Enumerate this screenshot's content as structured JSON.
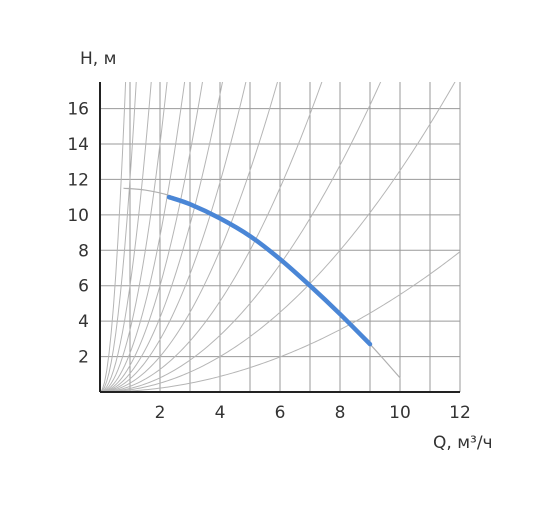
{
  "chart_data": {
    "type": "line",
    "title": "",
    "xlabel": "Q, м³/ч",
    "ylabel": "H, м",
    "xlim": [
      0,
      12
    ],
    "ylim": [
      0,
      17.5
    ],
    "x_ticks": [
      2,
      4,
      6,
      8,
      10,
      12
    ],
    "x_tick_labels": [
      "2",
      "4",
      "6",
      "8",
      "10",
      "12"
    ],
    "y_ticks": [
      2,
      4,
      6,
      8,
      10,
      12,
      14,
      16
    ],
    "y_tick_labels": [
      "2",
      "4",
      "6",
      "8",
      "10",
      "12",
      "14",
      "16"
    ],
    "grid": true,
    "series": [
      {
        "role": "pump-curve-full",
        "color": "#b0b0b0",
        "x": [
          0.8,
          1.5,
          2.3,
          3.0,
          4.0,
          5.0,
          6.0,
          7.0,
          8.0,
          9.0,
          10.0
        ],
        "y": [
          11.5,
          11.4,
          11.1,
          10.6,
          9.8,
          8.8,
          7.5,
          6.0,
          4.4,
          2.7,
          0.8
        ]
      },
      {
        "role": "operating-range",
        "color": "#4a86d6",
        "x": [
          2.3,
          3.0,
          4.0,
          5.0,
          6.0,
          7.0,
          8.0,
          9.0
        ],
        "y": [
          11.0,
          10.6,
          9.8,
          8.8,
          7.5,
          6.0,
          4.4,
          2.7
        ]
      }
    ],
    "system_curves": {
      "color": "#b5b5b5",
      "type": "parabola y = k * x^2",
      "k": [
        24,
        12,
        6,
        3.5,
        2.2,
        1.5,
        1.05,
        0.74,
        0.5,
        0.32,
        0.2,
        0.125,
        0.055
      ]
    }
  }
}
